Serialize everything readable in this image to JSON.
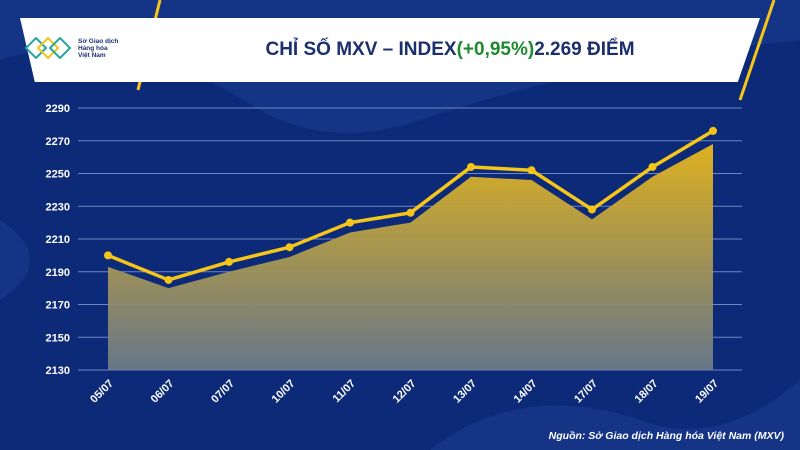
{
  "header": {
    "logo_lines": [
      "Sở Giao dịch",
      "Hàng hóa",
      "Việt Nam"
    ],
    "title_prefix": "CHỈ SỐ MXV – INDEX ",
    "title_change": "(+0,95%)",
    "title_suffix": " 2.269 ĐIỂM"
  },
  "source": "Nguồn: Sở Giao dịch Hàng hóa Việt Nam (MXV)",
  "colors": {
    "background": "#0d2a78",
    "line": "#f5c518",
    "area_top": "#e8b71a",
    "area_bottom": "#6b7a8a",
    "change": "#1e8a2e"
  },
  "chart_data": {
    "type": "area",
    "categories": [
      "05/07",
      "06/07",
      "07/07",
      "10/07",
      "11/07",
      "12/07",
      "13/07",
      "14/07",
      "17/07",
      "18/07",
      "19/07"
    ],
    "series": [
      {
        "values": [
          2200,
          2185,
          2196,
          2205,
          2220,
          2226,
          2254,
          2252,
          2228,
          2254,
          2276
        ]
      },
      {
        "values": [
          2193,
          2180,
          2190,
          2199,
          2214,
          2220,
          2248,
          2246,
          2222,
          2248,
          2268
        ]
      }
    ],
    "yticks": [
      2130,
      2150,
      2170,
      2190,
      2210,
      2230,
      2250,
      2270,
      2290
    ],
    "ylim": [
      2130,
      2290
    ],
    "grid": true
  }
}
